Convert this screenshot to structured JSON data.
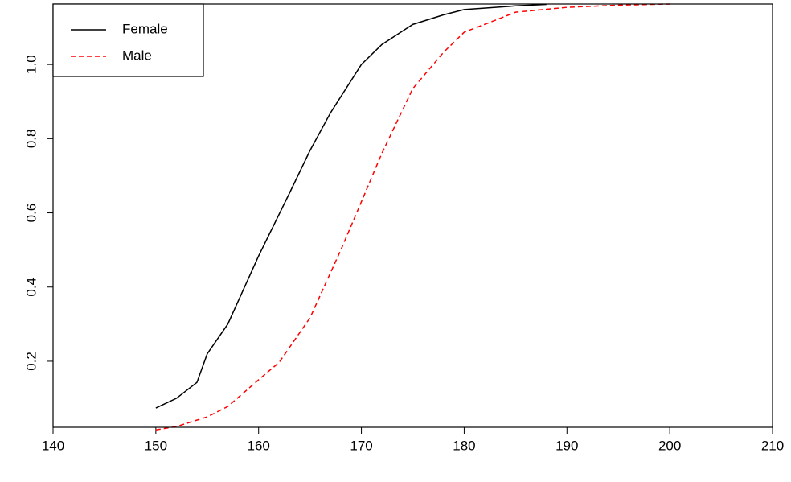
{
  "chart_data": {
    "type": "line",
    "series": [
      {
        "name": "Female",
        "color": "#000000",
        "dash": "solid",
        "x": [
          150,
          152,
          154,
          155,
          157,
          160,
          163,
          165,
          167,
          170,
          172,
          175,
          178,
          180,
          185,
          188
        ],
        "values": [
          0.074,
          0.1,
          0.143,
          0.22,
          0.3,
          0.484,
          0.653,
          0.768,
          0.87,
          1.0,
          1.054,
          1.108,
          1.134,
          1.148,
          1.158,
          1.162
        ]
      },
      {
        "name": "Male",
        "color": "#ff0000",
        "dash": "dashed",
        "x": [
          150,
          152,
          155,
          157,
          160,
          162,
          165,
          168,
          170,
          172,
          175,
          178,
          180,
          183,
          185,
          190,
          195,
          200
        ],
        "values": [
          0.015,
          0.024,
          0.05,
          0.078,
          0.15,
          0.197,
          0.317,
          0.5,
          0.63,
          0.761,
          0.935,
          1.033,
          1.087,
          1.119,
          1.141,
          1.154,
          1.16,
          1.163
        ]
      }
    ],
    "xlim": [
      140,
      210
    ],
    "xticks": [
      140,
      150,
      160,
      170,
      180,
      190,
      200,
      210
    ],
    "ylim": [
      0.022,
      1.163
    ],
    "yticks": [
      0.2,
      0.4,
      0.6,
      0.8,
      {
        "value": 1,
        "label": "1.0"
      }
    ],
    "legend": "top-left"
  }
}
